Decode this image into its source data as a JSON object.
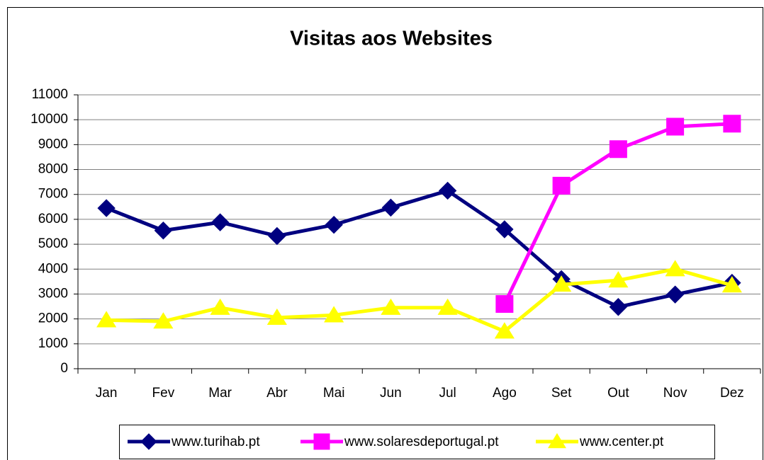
{
  "chart_data": {
    "type": "line",
    "title": "Visitas aos Websites",
    "categories": [
      "Jan",
      "Fev",
      "Mar",
      "Abr",
      "Mai",
      "Jun",
      "Jul",
      "Ago",
      "Set",
      "Out",
      "Nov",
      "Dez"
    ],
    "series": [
      {
        "name": "www.turihab.pt",
        "color": "#000080",
        "marker": "diamond",
        "values": [
          6450,
          5550,
          5880,
          5330,
          5780,
          6470,
          7150,
          5600,
          3600,
          2480,
          2980,
          3450
        ]
      },
      {
        "name": "www.solaresdeportugal.pt",
        "color": "#ff00ff",
        "marker": "square",
        "values": [
          null,
          null,
          null,
          null,
          null,
          null,
          null,
          2600,
          7350,
          8820,
          9720,
          9840
        ]
      },
      {
        "name": "www.center.pt",
        "color": "#ffff00",
        "marker": "triangle",
        "values": [
          1950,
          1900,
          2450,
          2050,
          2150,
          2450,
          2450,
          1500,
          3380,
          3550,
          4000,
          3350
        ]
      }
    ],
    "ylim": [
      0,
      11000
    ],
    "yticks": [
      0,
      1000,
      2000,
      3000,
      4000,
      5000,
      6000,
      7000,
      8000,
      9000,
      10000,
      11000
    ],
    "grid": true,
    "legend": "bottom"
  }
}
